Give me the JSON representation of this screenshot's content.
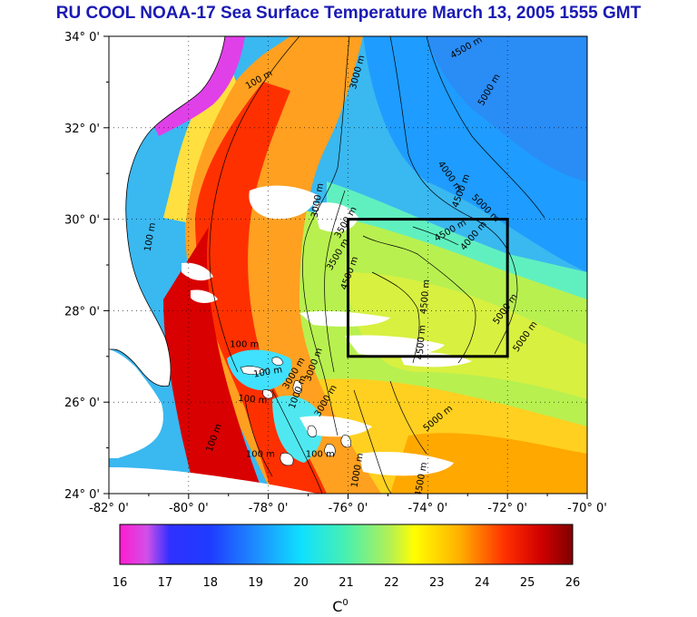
{
  "title": "RU COOL  NOAA-17 Sea Surface Temperature March 13, 2005 1555 GMT",
  "map": {
    "lon_range": [
      -82,
      -70
    ],
    "lat_range": [
      24,
      34
    ],
    "lat_ticks": [
      {
        "value": 34,
        "label": "34° 0'"
      },
      {
        "value": 32,
        "label": "32° 0'"
      },
      {
        "value": 30,
        "label": "30° 0'"
      },
      {
        "value": 28,
        "label": "28° 0'"
      },
      {
        "value": 26,
        "label": "26° 0'"
      },
      {
        "value": 24,
        "label": "24° 0'"
      }
    ],
    "lon_ticks": [
      {
        "value": -82,
        "label": "-82° 0'"
      },
      {
        "value": -80,
        "label": "-80° 0'"
      },
      {
        "value": -78,
        "label": "-78° 0'"
      },
      {
        "value": -76,
        "label": "-76° 0'"
      },
      {
        "value": -74,
        "label": "-74° 0'"
      },
      {
        "value": -72,
        "label": "-72° 0'"
      },
      {
        "value": -70,
        "label": "-70° 0'"
      }
    ],
    "study_box": {
      "lon_min": -76,
      "lon_max": -72,
      "lat_min": 27,
      "lat_max": 30
    },
    "contour_labels": [
      {
        "text": "100 m",
        "lon": -78.2,
        "lat": 33.0,
        "angle": -30
      },
      {
        "text": "3000 m",
        "lon": -75.7,
        "lat": 33.2,
        "angle": -75
      },
      {
        "text": "4500 m",
        "lon": -73.0,
        "lat": 33.7,
        "angle": -30
      },
      {
        "text": "5000 m",
        "lon": -72.4,
        "lat": 32.8,
        "angle": -60
      },
      {
        "text": "4000 m",
        "lon": -73.5,
        "lat": 30.9,
        "angle": 55
      },
      {
        "text": "4500 m",
        "lon": -73.1,
        "lat": 30.6,
        "angle": -70
      },
      {
        "text": "5000 m",
        "lon": -72.6,
        "lat": 30.2,
        "angle": 45
      },
      {
        "text": "4500 m",
        "lon": -73.4,
        "lat": 29.7,
        "angle": -30
      },
      {
        "text": "4000 m",
        "lon": -72.8,
        "lat": 29.6,
        "angle": -50
      },
      {
        "text": "3000 m",
        "lon": -76.7,
        "lat": 30.4,
        "angle": -80
      },
      {
        "text": "3500 m",
        "lon": -76.0,
        "lat": 29.9,
        "angle": -60
      },
      {
        "text": "3500 m",
        "lon": -76.2,
        "lat": 29.2,
        "angle": -60
      },
      {
        "text": "4500 m",
        "lon": -75.9,
        "lat": 28.8,
        "angle": -70
      },
      {
        "text": "4500 m",
        "lon": -74.0,
        "lat": 28.3,
        "angle": -85
      },
      {
        "text": "5000 m",
        "lon": -72.0,
        "lat": 28.0,
        "angle": -55
      },
      {
        "text": "5000 m",
        "lon": -71.5,
        "lat": 27.4,
        "angle": -55
      },
      {
        "text": "4500 m",
        "lon": -74.1,
        "lat": 27.3,
        "angle": -85
      },
      {
        "text": "100 m",
        "lon": -80.9,
        "lat": 29.6,
        "angle": -80
      },
      {
        "text": "100 m",
        "lon": -78.6,
        "lat": 27.2,
        "angle": 0
      },
      {
        "text": "100 m",
        "lon": -78.0,
        "lat": 26.6,
        "angle": -10
      },
      {
        "text": "100 m",
        "lon": -78.4,
        "lat": 26.0,
        "angle": 5
      },
      {
        "text": "3000 m",
        "lon": -76.8,
        "lat": 26.8,
        "angle": -70
      },
      {
        "text": "3000 m",
        "lon": -77.3,
        "lat": 26.6,
        "angle": -60
      },
      {
        "text": "3000 m",
        "lon": -76.5,
        "lat": 26.0,
        "angle": -60
      },
      {
        "text": "1000 m",
        "lon": -77.2,
        "lat": 26.2,
        "angle": -70
      },
      {
        "text": "100 m",
        "lon": -79.3,
        "lat": 25.2,
        "angle": -70
      },
      {
        "text": "100 m",
        "lon": -78.2,
        "lat": 24.8,
        "angle": 0
      },
      {
        "text": "100 m",
        "lon": -76.7,
        "lat": 24.8,
        "angle": 0
      },
      {
        "text": "5000 m",
        "lon": -73.7,
        "lat": 25.6,
        "angle": -40
      },
      {
        "text": "1000 m",
        "lon": -75.7,
        "lat": 24.5,
        "angle": -80
      },
      {
        "text": "4500 m",
        "lon": -74.1,
        "lat": 24.3,
        "angle": -80
      }
    ]
  },
  "colorbar": {
    "min": 16,
    "max": 26,
    "tick_labels": [
      "16",
      "17",
      "18",
      "19",
      "20",
      "21",
      "22",
      "23",
      "24",
      "25",
      "26"
    ],
    "unit_label": "C",
    "unit_superscript": "0"
  },
  "colors": {
    "land": "#ffffff",
    "cloud": "#ffffff",
    "contour": "#000000",
    "box": "#000000",
    "title": "#1a1ab4"
  }
}
